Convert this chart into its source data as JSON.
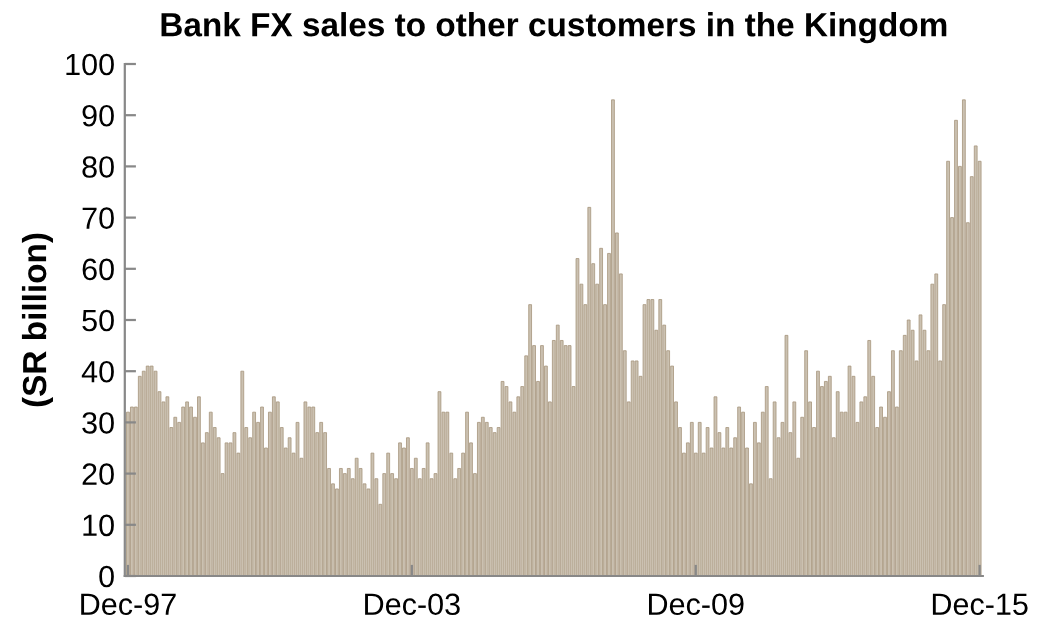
{
  "chart_data": {
    "type": "bar",
    "title": "Bank FX sales to other customers in the Kingdom",
    "ylabel": "(SR billion)",
    "categories": [
      "Dec-97",
      null,
      null,
      null,
      null,
      null,
      null,
      null,
      null,
      null,
      null,
      null,
      null,
      null,
      null,
      null,
      null,
      null,
      null,
      null,
      null,
      null,
      null,
      null,
      null,
      null,
      null,
      null,
      null,
      null,
      null,
      null,
      null,
      null,
      null,
      null,
      null,
      null,
      null,
      null,
      null,
      null,
      null,
      null,
      null,
      null,
      null,
      null,
      null,
      null,
      null,
      null,
      null,
      null,
      null,
      null,
      null,
      null,
      null,
      null,
      null,
      null,
      null,
      null,
      null,
      null,
      null,
      null,
      null,
      null,
      null,
      null,
      "Dec-03",
      null,
      null,
      null,
      null,
      null,
      null,
      null,
      null,
      null,
      null,
      null,
      null,
      null,
      null,
      null,
      null,
      null,
      null,
      null,
      null,
      null,
      null,
      null,
      null,
      null,
      null,
      null,
      null,
      null,
      null,
      null,
      null,
      null,
      null,
      null,
      null,
      null,
      null,
      null,
      null,
      null,
      null,
      null,
      null,
      null,
      null,
      null,
      null,
      null,
      null,
      null,
      null,
      null,
      null,
      null,
      null,
      null,
      null,
      null,
      null,
      null,
      null,
      null,
      null,
      null,
      null,
      null,
      null,
      null,
      null,
      null,
      "Dec-09",
      null,
      null,
      null,
      null,
      null,
      null,
      null,
      null,
      null,
      null,
      null,
      null,
      null,
      null,
      null,
      null,
      null,
      null,
      null,
      null,
      null,
      null,
      null,
      null,
      null,
      null,
      null,
      null,
      null,
      null,
      null,
      null,
      null,
      null,
      null,
      null,
      null,
      null,
      null,
      null,
      null,
      null,
      null,
      null,
      null,
      null,
      null,
      null,
      null,
      null,
      null,
      null,
      null,
      null,
      null,
      null,
      null,
      null,
      null,
      null,
      null,
      null,
      null,
      null,
      null,
      null,
      null,
      null,
      null,
      null,
      null,
      "Dec-15"
    ],
    "values": [
      32,
      33,
      33,
      39,
      40,
      41,
      41,
      40,
      36,
      34,
      35,
      29,
      31,
      30,
      33,
      34,
      33,
      31,
      35,
      26,
      28,
      32,
      29,
      27,
      20,
      26,
      26,
      28,
      24,
      40,
      29,
      27,
      32,
      30,
      33,
      25,
      32,
      35,
      34,
      29,
      25,
      27,
      24,
      30,
      23,
      34,
      33,
      33,
      28,
      30,
      28,
      21,
      18,
      17,
      21,
      20,
      21,
      19,
      23,
      21,
      18,
      17,
      24,
      19,
      14,
      20,
      24,
      20,
      19,
      26,
      25,
      27,
      21,
      23,
      19,
      21,
      26,
      19,
      20,
      36,
      32,
      32,
      24,
      19,
      21,
      24,
      32,
      26,
      20,
      30,
      31,
      30,
      29,
      28,
      29,
      38,
      37,
      34,
      32,
      35,
      37,
      43,
      53,
      45,
      38,
      45,
      41,
      34,
      46,
      49,
      46,
      45,
      45,
      37,
      62,
      57,
      53,
      72,
      61,
      57,
      64,
      53,
      63,
      93,
      67,
      59,
      44,
      34,
      42,
      42,
      39,
      53,
      54,
      54,
      48,
      54,
      49,
      44,
      41,
      34,
      29,
      24,
      26,
      30,
      24,
      30,
      24,
      29,
      25,
      35,
      28,
      25,
      29,
      25,
      27,
      33,
      32,
      25,
      18,
      30,
      26,
      32,
      37,
      19,
      34,
      27,
      30,
      47,
      28,
      34,
      23,
      31,
      44,
      34,
      29,
      40,
      37,
      38,
      39,
      27,
      36,
      32,
      32,
      41,
      39,
      30,
      34,
      35,
      46,
      39,
      29,
      33,
      31,
      36,
      44,
      33,
      44,
      47,
      50,
      48,
      42,
      51,
      48,
      44,
      57,
      59,
      42,
      53,
      81,
      70,
      89,
      80,
      93,
      69,
      78,
      84,
      81
    ],
    "color": "#cbc1b1",
    "ylim": [
      0,
      100
    ],
    "yticks": [
      0,
      10,
      20,
      30,
      40,
      50,
      60,
      70,
      80,
      90,
      100
    ],
    "grid": false,
    "legend": false
  }
}
